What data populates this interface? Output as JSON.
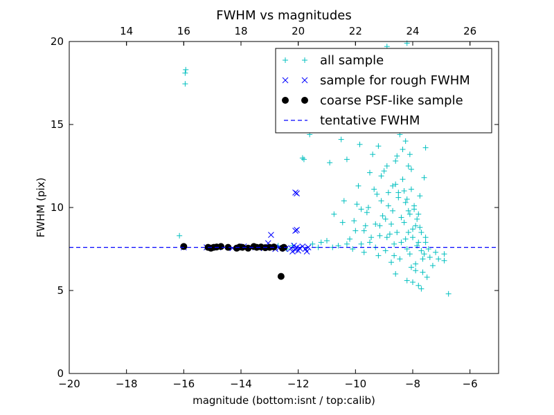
{
  "chart_data": {
    "type": "scatter",
    "title": "FWHM vs magnitudes",
    "xlabel": "magnitude (bottom:isnt / top:calib)",
    "ylabel": "FWHM (pix)",
    "xlim": [
      -20,
      -5
    ],
    "ylim": [
      0,
      20
    ],
    "top_axis_offset": 32,
    "x_ticks": [
      -20,
      -18,
      -16,
      -14,
      -12,
      -10,
      -8,
      -6
    ],
    "x_tick_labels": [
      "−20",
      "−18",
      "−16",
      "−14",
      "−12",
      "−10",
      "−8",
      "−6"
    ],
    "y_ticks": [
      0,
      5,
      10,
      15,
      20
    ],
    "y_tick_labels": [
      "0",
      "5",
      "10",
      "15",
      "20"
    ],
    "top_ticks": [
      14,
      16,
      18,
      20,
      22,
      24,
      26
    ],
    "top_tick_labels": [
      "14",
      "16",
      "18",
      "20",
      "22",
      "24",
      "26"
    ],
    "grid": false,
    "legend_position": "upper right",
    "series": [
      {
        "name": "all sample",
        "marker": "plus",
        "color": "#00bfbf",
        "points": [
          [
            -16.15,
            8.3
          ],
          [
            -15.95,
            18.1
          ],
          [
            -15.93,
            18.3
          ],
          [
            -15.95,
            17.45
          ],
          [
            -12.95,
            7.6
          ],
          [
            -12.7,
            7.7
          ],
          [
            -12.4,
            7.5
          ],
          [
            -12.2,
            7.7
          ],
          [
            -11.85,
            12.98
          ],
          [
            -11.8,
            12.9
          ],
          [
            -11.6,
            14.4
          ],
          [
            -11.5,
            7.8
          ],
          [
            -11.3,
            7.6
          ],
          [
            -11.0,
            8.0
          ],
          [
            -10.9,
            12.7
          ],
          [
            -10.75,
            9.6
          ],
          [
            -10.6,
            7.7
          ],
          [
            -10.55,
            16.0
          ],
          [
            -10.5,
            14.1
          ],
          [
            -10.4,
            10.4
          ],
          [
            -10.3,
            12.9
          ],
          [
            -10.2,
            8.1
          ],
          [
            -10.1,
            7.5
          ],
          [
            -10.05,
            9.2
          ],
          [
            -9.95,
            10.2
          ],
          [
            -9.9,
            11.3
          ],
          [
            -9.85,
            13.8
          ],
          [
            -9.8,
            7.8
          ],
          [
            -9.7,
            8.6
          ],
          [
            -9.6,
            9.7
          ],
          [
            -9.5,
            12.1
          ],
          [
            -9.45,
            8.2
          ],
          [
            -9.4,
            13.2
          ],
          [
            -9.3,
            7.6
          ],
          [
            -9.25,
            10.8
          ],
          [
            -9.2,
            7.1
          ],
          [
            -9.15,
            8.9
          ],
          [
            -9.1,
            11.9
          ],
          [
            -9.05,
            9.5
          ],
          [
            -9.0,
            12.2
          ],
          [
            -8.95,
            7.4
          ],
          [
            -8.9,
            8.2
          ],
          [
            -8.85,
            10.1
          ],
          [
            -8.8,
            14.8
          ],
          [
            -8.75,
            9.0
          ],
          [
            -8.7,
            11.3
          ],
          [
            -8.65,
            7.8
          ],
          [
            -8.6,
            12.8
          ],
          [
            -8.55,
            8.5
          ],
          [
            -8.5,
            10.6
          ],
          [
            -8.45,
            6.9
          ],
          [
            -8.4,
            9.4
          ],
          [
            -8.35,
            13.5
          ],
          [
            -8.3,
            11.0
          ],
          [
            -8.25,
            8.1
          ],
          [
            -8.2,
            10.5
          ],
          [
            -8.15,
            9.8
          ],
          [
            -8.1,
            7.2
          ],
          [
            -8.05,
            12.3
          ],
          [
            -8.0,
            8.7
          ],
          [
            -7.95,
            10.1
          ],
          [
            -7.9,
            6.6
          ],
          [
            -7.85,
            9.3
          ],
          [
            -7.8,
            7.9
          ],
          [
            -7.75,
            8.8
          ],
          [
            -7.7,
            7.4
          ],
          [
            -7.65,
            6.9
          ],
          [
            -7.6,
            7.2
          ],
          [
            -7.55,
            8.2
          ],
          [
            -7.5,
            5.8
          ],
          [
            -7.4,
            7.0
          ],
          [
            -7.3,
            6.5
          ],
          [
            -7.2,
            7.3
          ],
          [
            -7.1,
            6.9
          ],
          [
            -6.9,
            7.2
          ],
          [
            -6.9,
            6.8
          ],
          [
            -6.75,
            4.8
          ],
          [
            -8.6,
            6.0
          ],
          [
            -8.2,
            5.6
          ],
          [
            -8.0,
            5.5
          ],
          [
            -7.8,
            5.3
          ],
          [
            -7.7,
            5.1
          ],
          [
            -8.4,
            15.9
          ],
          [
            -8.3,
            16.5
          ],
          [
            -8.5,
            17.8
          ],
          [
            -8.35,
            18.6
          ],
          [
            -8.6,
            19.3
          ],
          [
            -8.9,
            19.7
          ],
          [
            -8.2,
            19.9
          ],
          [
            -8.45,
            14.4
          ],
          [
            -8.7,
            15.2
          ],
          [
            -8.25,
            14.0
          ],
          [
            -8.55,
            13.1
          ],
          [
            -8.15,
            12.5
          ],
          [
            -8.35,
            11.7
          ],
          [
            -8.05,
            11.1
          ],
          [
            -8.5,
            10.9
          ],
          [
            -8.25,
            10.3
          ],
          [
            -7.95,
            9.9
          ],
          [
            -8.1,
            9.6
          ],
          [
            -8.3,
            9.1
          ],
          [
            -7.9,
            8.9
          ],
          [
            -8.15,
            8.5
          ],
          [
            -8.0,
            8.2
          ],
          [
            -8.4,
            7.9
          ],
          [
            -7.85,
            7.7
          ],
          [
            -8.2,
            7.5
          ],
          [
            -9.4,
            14.9
          ],
          [
            -9.0,
            15.6
          ],
          [
            -9.2,
            13.7
          ],
          [
            -8.9,
            12.5
          ],
          [
            -9.1,
            10.4
          ],
          [
            -9.3,
            9.0
          ],
          [
            -8.8,
            8.4
          ],
          [
            -9.5,
            7.9
          ],
          [
            -10.3,
            7.8
          ],
          [
            -10.8,
            7.6
          ],
          [
            -11.2,
            7.9
          ],
          [
            -9.7,
            7.3
          ],
          [
            -8.65,
            7.1
          ],
          [
            -8.75,
            6.7
          ],
          [
            -8.05,
            6.4
          ],
          [
            -7.9,
            6.2
          ],
          [
            -7.65,
            6.1
          ],
          [
            -7.45,
            7.5
          ],
          [
            -7.55,
            7.9
          ],
          [
            -7.7,
            8.5
          ],
          [
            -7.8,
            9.6
          ],
          [
            -7.75,
            10.7
          ],
          [
            -7.6,
            11.8
          ],
          [
            -7.55,
            13.6
          ],
          [
            -8.1,
            13.2
          ],
          [
            -8.55,
            16.3
          ],
          [
            -8.8,
            17.1
          ],
          [
            -8.45,
            18.2
          ],
          [
            -8.15,
            17.4
          ],
          [
            -8.6,
            11.4
          ],
          [
            -8.7,
            9.8
          ],
          [
            -8.85,
            10.9
          ],
          [
            -8.95,
            9.3
          ],
          [
            -9.15,
            8.3
          ],
          [
            -9.35,
            11.1
          ],
          [
            -9.55,
            10.0
          ],
          [
            -9.65,
            8.9
          ],
          [
            -9.8,
            9.9
          ],
          [
            -10.0,
            8.6
          ],
          [
            -10.45,
            9.1
          ]
        ]
      },
      {
        "name": "sample for rough FWHM",
        "marker": "x",
        "color": "#0000ff",
        "points": [
          [
            -13.05,
            7.85
          ],
          [
            -12.95,
            8.35
          ],
          [
            -12.65,
            7.6
          ],
          [
            -12.45,
            7.5
          ],
          [
            -12.25,
            7.55
          ],
          [
            -12.2,
            7.35
          ],
          [
            -12.15,
            7.7
          ],
          [
            -12.1,
            7.45
          ],
          [
            -12.05,
            7.6
          ],
          [
            -12.0,
            7.4
          ],
          [
            -11.95,
            7.55
          ],
          [
            -11.85,
            7.65
          ],
          [
            -11.75,
            7.5
          ],
          [
            -11.7,
            7.35
          ],
          [
            -11.65,
            7.6
          ],
          [
            -12.1,
            10.9
          ],
          [
            -12.05,
            10.85
          ],
          [
            -12.1,
            8.6
          ],
          [
            -12.05,
            8.65
          ],
          [
            -13.5,
            7.6
          ],
          [
            -13.9,
            7.65
          ],
          [
            -14.3,
            7.55
          ],
          [
            -14.8,
            7.6
          ],
          [
            -15.2,
            7.6
          ],
          [
            -16.0,
            7.6
          ],
          [
            -13.2,
            7.55
          ],
          [
            -12.8,
            7.5
          ]
        ]
      },
      {
        "name": "coarse PSF-like sample",
        "marker": "circle",
        "color": "#000000",
        "points": [
          [
            -16.0,
            7.65
          ],
          [
            -15.15,
            7.6
          ],
          [
            -15.05,
            7.55
          ],
          [
            -14.95,
            7.6
          ],
          [
            -14.85,
            7.62
          ],
          [
            -14.7,
            7.65
          ],
          [
            -14.45,
            7.6
          ],
          [
            -14.15,
            7.55
          ],
          [
            -14.05,
            7.62
          ],
          [
            -13.95,
            7.6
          ],
          [
            -13.75,
            7.55
          ],
          [
            -13.55,
            7.65
          ],
          [
            -13.45,
            7.6
          ],
          [
            -13.3,
            7.62
          ],
          [
            -13.15,
            7.58
          ],
          [
            -13.0,
            7.6
          ],
          [
            -12.85,
            7.62
          ],
          [
            -12.55,
            7.55
          ],
          [
            -12.5,
            7.6
          ],
          [
            -12.6,
            5.85
          ]
        ]
      },
      {
        "name": "tentative FWHM",
        "marker": "dashed-line",
        "color": "#0000ff",
        "y": 7.6
      }
    ]
  }
}
